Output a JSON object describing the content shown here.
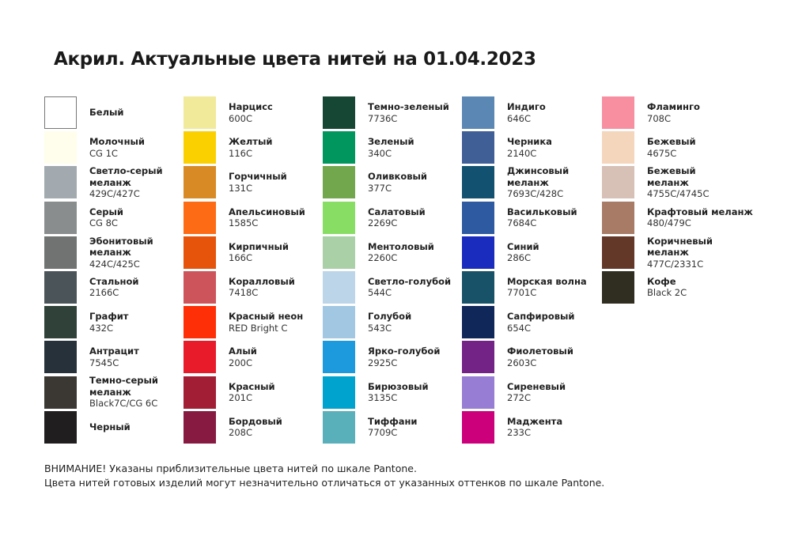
{
  "title": "Акрил. Актуальные цвета нитей на 01.04.2023",
  "columns": [
    [
      {
        "name": "Белый",
        "code": "",
        "color": "#ffffff"
      },
      {
        "name": "Молочный",
        "code": "CG 1C",
        "color": "#fffdeb"
      },
      {
        "name": "Светло-серый меланж",
        "code": "429C/427C",
        "color": "#a2a9af"
      },
      {
        "name": "Серый",
        "code": "CG 8C",
        "color": "#898d8e"
      },
      {
        "name": "Эбонитовый меланж",
        "code": "424C/425C",
        "color": "#707372"
      },
      {
        "name": "Стальной",
        "code": "2166C",
        "color": "#4b5458"
      },
      {
        "name": "Графит",
        "code": "432C",
        "color": "#2f4139"
      },
      {
        "name": "Антрацит",
        "code": "7545C",
        "color": "#27313a"
      },
      {
        "name": "Темно-серый меланж",
        "code": "Black7C/CG 6C",
        "color": "#3b3834"
      },
      {
        "name": "Черный",
        "code": "",
        "color": "#201e1f"
      }
    ],
    [
      {
        "name": "Нарцисс",
        "code": "600C",
        "color": "#f0ea9a"
      },
      {
        "name": "Желтый",
        "code": "116C",
        "color": "#fad000"
      },
      {
        "name": "Горчичный",
        "code": "131C",
        "color": "#d88a25"
      },
      {
        "name": "Апельсиновый",
        "code": "1585C",
        "color": "#fd6b14"
      },
      {
        "name": "Кирпичный",
        "code": "166C",
        "color": "#e5540a"
      },
      {
        "name": "Коралловый",
        "code": "7418C",
        "color": "#ce545b"
      },
      {
        "name": "Красный неон",
        "code": "RED Bright C",
        "color": "#fe2e06"
      },
      {
        "name": "Алый",
        "code": "200C",
        "color": "#e81b2a"
      },
      {
        "name": "Красный",
        "code": "201C",
        "color": "#a11e35"
      },
      {
        "name": "Бордовый",
        "code": "208C",
        "color": "#861a41"
      }
    ],
    [
      {
        "name": "Темно-зеленый",
        "code": "7736C",
        "color": "#154734"
      },
      {
        "name": "Зеленый",
        "code": "340C",
        "color": "#00965e"
      },
      {
        "name": "Оливковый",
        "code": "377C",
        "color": "#72a74d"
      },
      {
        "name": "Салатовый",
        "code": "2269C",
        "color": "#88de64"
      },
      {
        "name": "Ментоловый",
        "code": "2260C",
        "color": "#a9d0a7"
      },
      {
        "name": "Светло-голубой",
        "code": "544C",
        "color": "#bcd5e9"
      },
      {
        "name": "Голубой",
        "code": "543C",
        "color": "#a1c7e3"
      },
      {
        "name": "Ярко-голубой",
        "code": "2925C",
        "color": "#1d9ade"
      },
      {
        "name": "Бирюзовый",
        "code": "3135C",
        "color": "#00a3ce"
      },
      {
        "name": "Тиффани",
        "code": "7709C",
        "color": "#59afba"
      }
    ],
    [
      {
        "name": "Индиго",
        "code": "646C",
        "color": "#5b87b4"
      },
      {
        "name": "Черника",
        "code": "2140C",
        "color": "#405f96"
      },
      {
        "name": "Джинсовый меланж",
        "code": "7693C/428C",
        "color": "#12516f"
      },
      {
        "name": "Васильковый",
        "code": "7684C",
        "color": "#2d5aa0"
      },
      {
        "name": "Синий",
        "code": "286C",
        "color": "#1a2cbd"
      },
      {
        "name": "Морская волна",
        "code": "7701C",
        "color": "#185268"
      },
      {
        "name": "Сапфировый",
        "code": "654C",
        "color": "#10275a"
      },
      {
        "name": "Фиолетовый",
        "code": "2603C",
        "color": "#732385"
      },
      {
        "name": "Сиреневый",
        "code": "272C",
        "color": "#977dd3"
      },
      {
        "name": "Маджента",
        "code": "233C",
        "color": "#cc007b"
      }
    ],
    [
      {
        "name": "Фламинго",
        "code": "708C",
        "color": "#f88fa1"
      },
      {
        "name": "Бежевый",
        "code": "4675C",
        "color": "#f4d6bc"
      },
      {
        "name": "Бежевый меланж",
        "code": "4755C/4745C",
        "color": "#d7c0b5"
      },
      {
        "name": "Крафтовый меланж",
        "code": "480/479C",
        "color": "#a87b66"
      },
      {
        "name": "Коричневый меланж",
        "code": "477C/2331C",
        "color": "#633829"
      },
      {
        "name": "Кофе",
        "code": "Black 2C",
        "color": "#302d21"
      }
    ]
  ],
  "footer": {
    "line1": "ВНИМАНИЕ! Указаны приблизительные цвета нитей по шкале Pantone.",
    "line2": "Цвета нитей готовых изделий могут незначительно отличаться от указанных оттенков по шкале Pantone."
  }
}
